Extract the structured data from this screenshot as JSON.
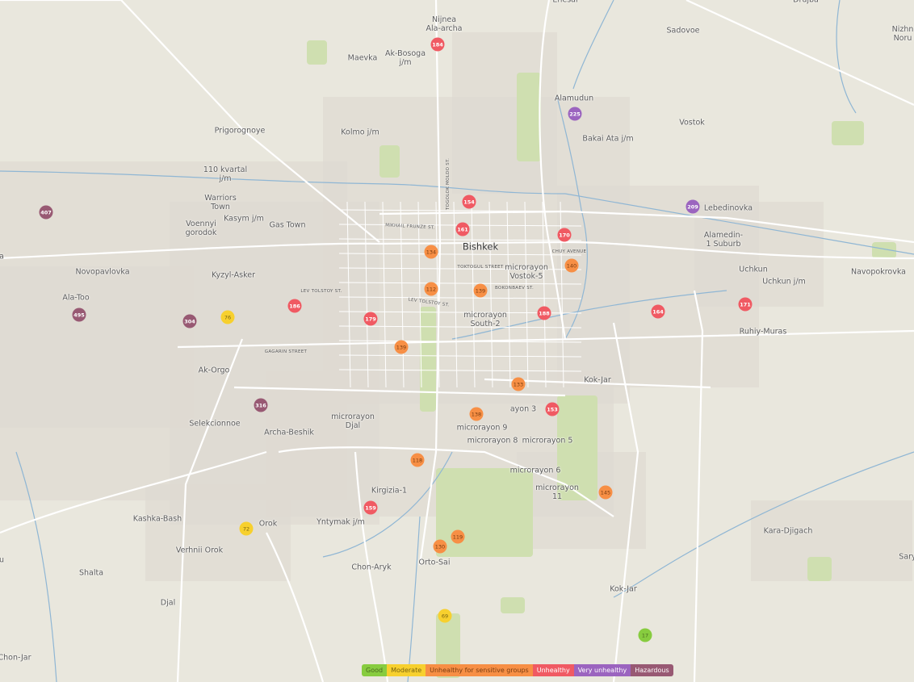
{
  "map": {
    "city_label": "Bishkek",
    "places": [
      "Nijnea\nAla-archa",
      "Ak-Bosoga\nj/m",
      "Maevka",
      "Prigorognoye",
      "Kolmo j/m",
      "110 kvartal\nj/m",
      "Warriors\nTown",
      "Voennyi\ngorodok",
      "Kasym j/m",
      "Gas Town",
      "Novopavlovka",
      "Kyzyl-Asker",
      "Ala-Too",
      "Ak-Orgo",
      "Selekcionnoe",
      "Archa-Beshik",
      "microrayon\nDjal",
      "Kashka-Bash",
      "Orok",
      "Verhnii Orok",
      "Shalta",
      "Djal",
      "Chon-Jar",
      "Kirgizia-1",
      "Yntymak j/m",
      "Chon-Aryk",
      "Orto-Sai",
      "microrayon\nSouth-2",
      "microrayon\nVostok-5",
      "microrayon 9",
      "microrayon 8",
      "microrayon 5",
      "microrayon 6",
      "microrayon\n11",
      "ayon 3",
      "Kok-Jar",
      "Kok-Jar",
      "Alamudun",
      "Bakai Ata j/m",
      "Sadovoe",
      "Vostok",
      "Lebedinovka",
      "Alamedin-\n1 Suburb",
      "Uchkun",
      "Uchkun j/m",
      "Navopokrovka",
      "Ruhiy-Muras",
      "Kara-Djigach",
      "Nizhn\nNoru",
      "Drujba",
      "Enesai",
      "Sary",
      "a",
      "u"
    ],
    "streets": [
      "TOGOLOK MOLDO ST.",
      "MIKHAIL FRUNZE ST.",
      "CHUY AVENUE",
      "TOKTOGUL STREET",
      "BOKONBAEV ST.",
      "LEV TOLSTOY ST.",
      "LEV TOLSTOY ST.",
      "GAGARIN STREET"
    ]
  },
  "stations": [
    {
      "aqi": "184",
      "level": "unhealthy"
    },
    {
      "aqi": "225",
      "level": "very_unhealthy"
    },
    {
      "aqi": "154",
      "level": "unhealthy"
    },
    {
      "aqi": "161",
      "level": "unhealthy"
    },
    {
      "aqi": "209",
      "level": "very_unhealthy"
    },
    {
      "aqi": "170",
      "level": "unhealthy"
    },
    {
      "aqi": "134",
      "level": "usg"
    },
    {
      "aqi": "140",
      "level": "usg"
    },
    {
      "aqi": "112",
      "level": "usg"
    },
    {
      "aqi": "139",
      "level": "usg"
    },
    {
      "aqi": "407",
      "level": "hazardous"
    },
    {
      "aqi": "495",
      "level": "hazardous"
    },
    {
      "aqi": "304",
      "level": "hazardous"
    },
    {
      "aqi": "76",
      "level": "moderate"
    },
    {
      "aqi": "186",
      "level": "unhealthy"
    },
    {
      "aqi": "179",
      "level": "unhealthy"
    },
    {
      "aqi": "188",
      "level": "unhealthy"
    },
    {
      "aqi": "164",
      "level": "unhealthy"
    },
    {
      "aqi": "171",
      "level": "unhealthy"
    },
    {
      "aqi": "139",
      "level": "usg"
    },
    {
      "aqi": "316",
      "level": "hazardous"
    },
    {
      "aqi": "133",
      "level": "usg"
    },
    {
      "aqi": "138",
      "level": "usg"
    },
    {
      "aqi": "153",
      "level": "unhealthy"
    },
    {
      "aqi": "118",
      "level": "usg"
    },
    {
      "aqi": "145",
      "level": "usg"
    },
    {
      "aqi": "159",
      "level": "unhealthy"
    },
    {
      "aqi": "72",
      "level": "moderate"
    },
    {
      "aqi": "119",
      "level": "usg"
    },
    {
      "aqi": "130",
      "level": "usg"
    },
    {
      "aqi": "69",
      "level": "moderate"
    },
    {
      "aqi": "17",
      "level": "good"
    }
  ],
  "legend": [
    {
      "key": "good",
      "label": "Good",
      "color": "#87cc3f",
      "text": "#4a6a20"
    },
    {
      "key": "moderate",
      "label": "Moderate",
      "color": "#f7d02e",
      "text": "#7a6410"
    },
    {
      "key": "usg",
      "label": "Unhealthy for sensitive groups",
      "color": "#f78f45",
      "text": "#7a3c10"
    },
    {
      "key": "unhealthy",
      "label": "Unhealthy",
      "color": "#f05a63",
      "text": "#ffffff"
    },
    {
      "key": "very_unhealthy",
      "label": "Very unhealthy",
      "color": "#9b64bf",
      "text": "#ffffff"
    },
    {
      "key": "hazardous",
      "label": "Hazardous",
      "color": "#985973",
      "text": "#ffffff"
    }
  ],
  "colors": {
    "land": "#e9e7dd",
    "urban": "#dedad2",
    "park": "#cfdfb0",
    "water": "#8fb6d4",
    "road": "#ffffff"
  }
}
